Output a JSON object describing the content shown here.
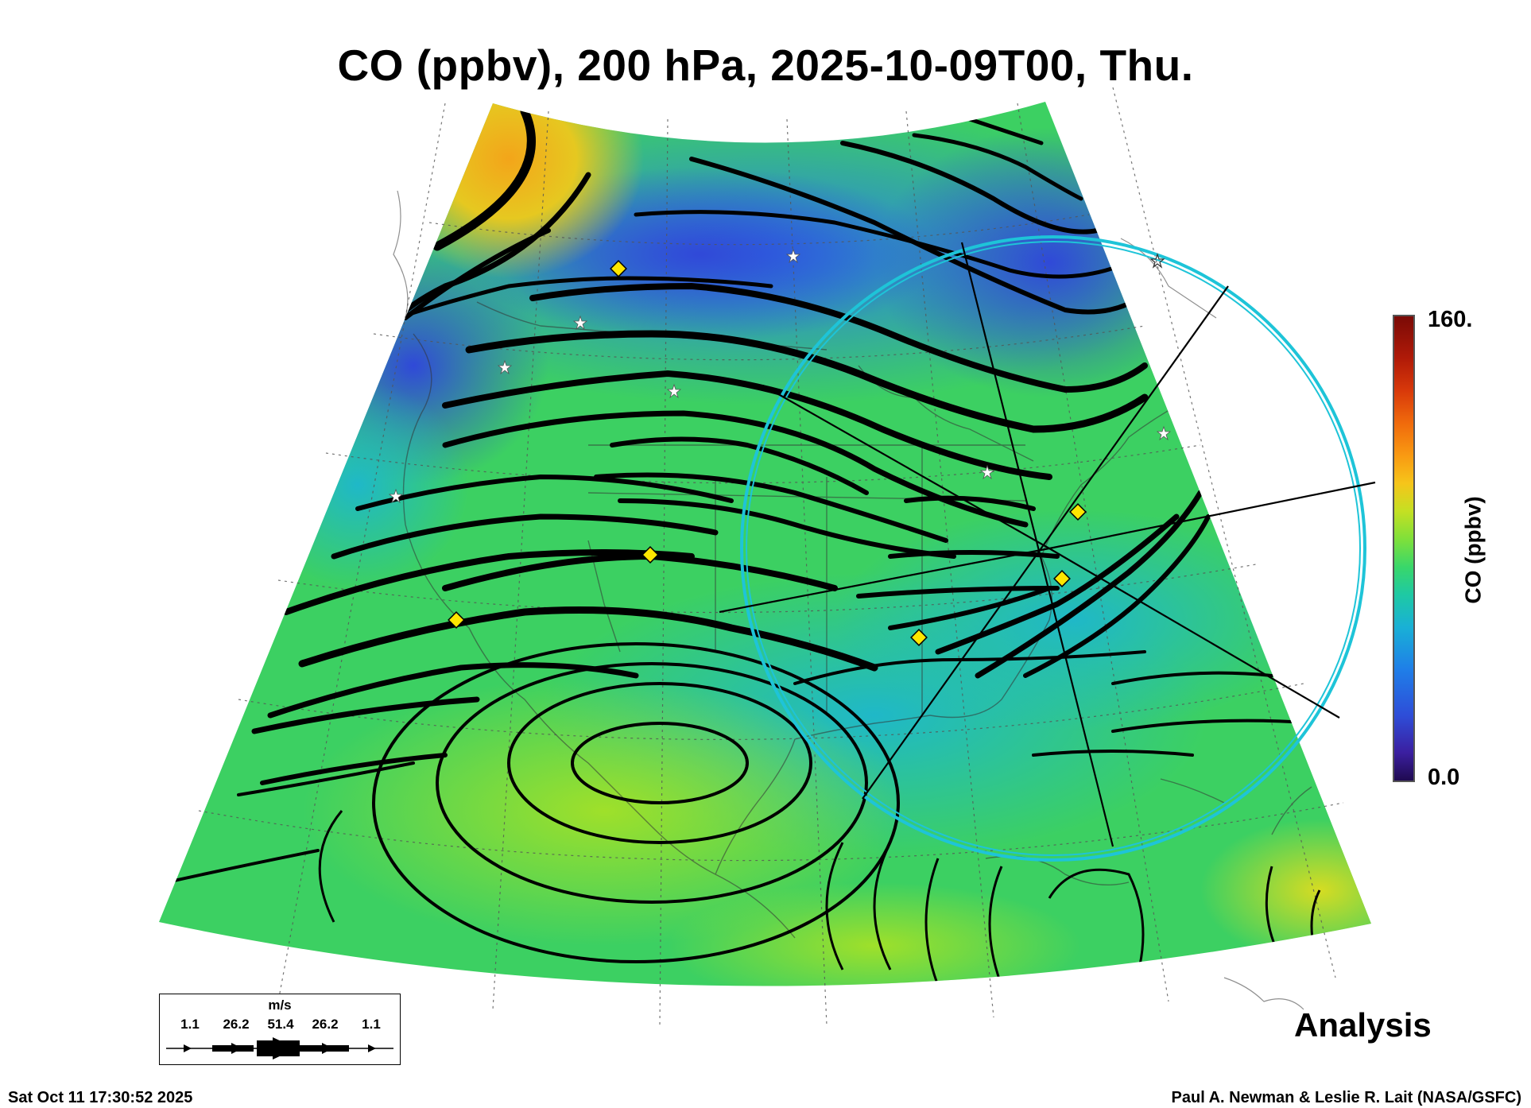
{
  "title": "CO (ppbv), 200 hPa, 2025-10-09T00, Thu.",
  "colorbar": {
    "max_label": "160.",
    "min_label": "0.0",
    "label": "CO (ppbv)",
    "range": [
      0,
      160
    ]
  },
  "analysis_label": "Analysis",
  "timestamp": "Sat Oct 11 17:30:52 2025",
  "credit": "Paul A. Newman & Leslie R. Lait (NASA/GSFC)",
  "wind_legend": {
    "units": "m/s",
    "labels": [
      "1.1",
      "26.2",
      "51.4",
      "26.2",
      "1.1"
    ]
  },
  "colors": {
    "background_field": "#2ecf6a",
    "streamline": "#000000",
    "range_ring": "#1ec4d8",
    "marker_diamond": "#ffe600",
    "marker_star": "#ffffff"
  }
}
